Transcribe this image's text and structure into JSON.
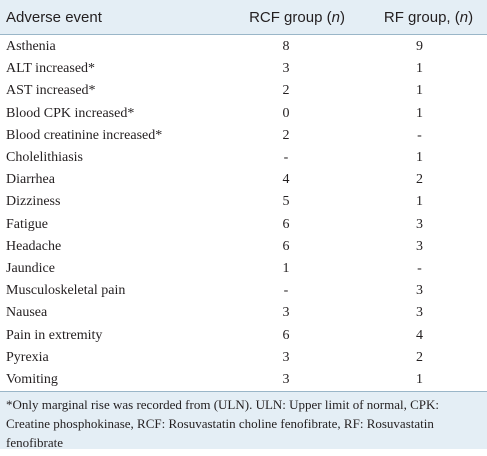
{
  "table": {
    "headers": {
      "event": "Adverse event",
      "rcf_prefix": "RCF group (",
      "rcf_n": "n",
      "rcf_suffix": ")",
      "rf_prefix": "RF group, (",
      "rf_n": "n",
      "rf_suffix": ")"
    },
    "rows": [
      {
        "event": "Asthenia",
        "rcf": "8",
        "rf": "9"
      },
      {
        "event": "ALT increased*",
        "rcf": "3",
        "rf": "1"
      },
      {
        "event": "AST increased*",
        "rcf": "2",
        "rf": "1"
      },
      {
        "event": "Blood CPK increased*",
        "rcf": "0",
        "rf": "1"
      },
      {
        "event": "Blood creatinine increased*",
        "rcf": "2",
        "rf": "-"
      },
      {
        "event": "Cholelithiasis",
        "rcf": "-",
        "rf": "1"
      },
      {
        "event": "Diarrhea",
        "rcf": "4",
        "rf": "2"
      },
      {
        "event": "Dizziness",
        "rcf": "5",
        "rf": "1"
      },
      {
        "event": "Fatigue",
        "rcf": "6",
        "rf": "3"
      },
      {
        "event": "Headache",
        "rcf": "6",
        "rf": "3"
      },
      {
        "event": "Jaundice",
        "rcf": "1",
        "rf": "-"
      },
      {
        "event": "Musculoskeletal pain",
        "rcf": "-",
        "rf": "3"
      },
      {
        "event": "Nausea",
        "rcf": "3",
        "rf": "3"
      },
      {
        "event": "Pain in extremity",
        "rcf": "6",
        "rf": "4"
      },
      {
        "event": "Pyrexia",
        "rcf": "3",
        "rf": "2"
      },
      {
        "event": "Vomiting",
        "rcf": "3",
        "rf": "1"
      }
    ],
    "footnote": "*Only marginal rise was recorded from (ULN). ULN: Upper limit of normal, CPK: Creatine phosphokinase, RCF: Rosuvastatin choline fenofibrate, RF: Rosuvastatin fenofibrate"
  },
  "colors": {
    "header_bg": "#e4eef5",
    "rule": "#9ab6c8",
    "text": "#231f20"
  }
}
